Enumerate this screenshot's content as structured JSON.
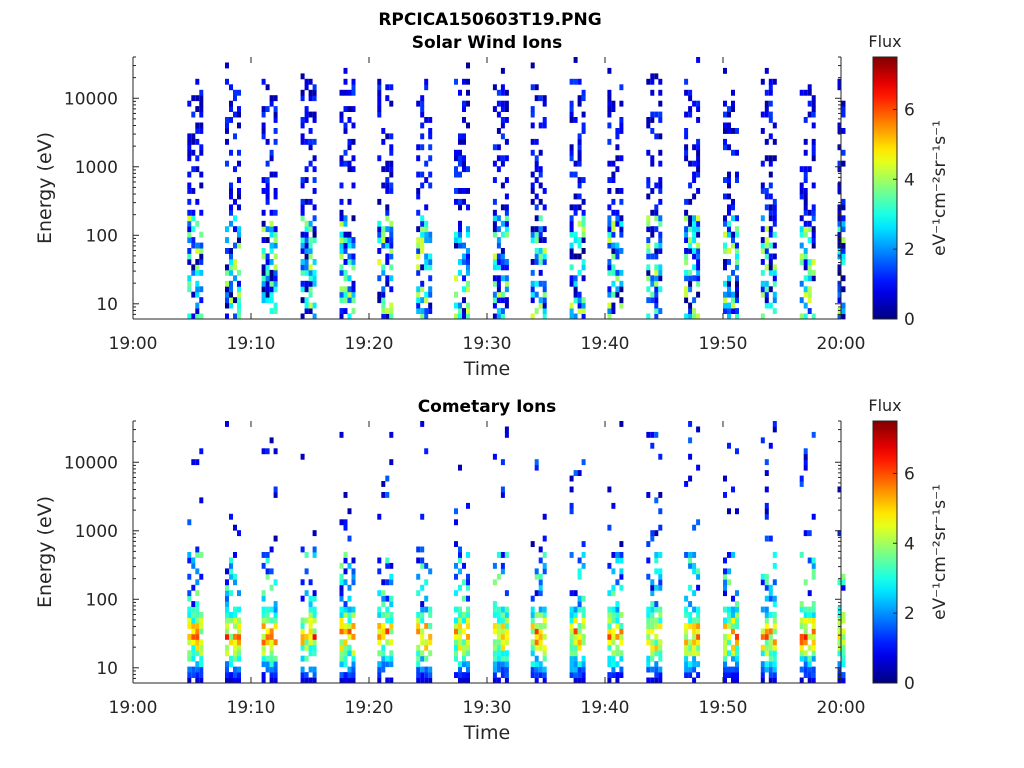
{
  "figure_title": "RPCICA150603T19.PNG",
  "chart_data": [
    {
      "type": "heatmap",
      "title": "Solar Wind Ions",
      "xlabel": "Time",
      "ylabel": "Energy (eV)",
      "x_ticks": [
        "19:00",
        "19:10",
        "19:20",
        "19:30",
        "19:40",
        "19:50",
        "20:00"
      ],
      "y_ticks": [
        "10",
        "100",
        "1000",
        "10000"
      ],
      "y_scale": "log",
      "xlim": [
        "19:00",
        "20:00"
      ],
      "ylim": [
        6,
        40000
      ],
      "colorbar": {
        "title": "Flux",
        "label": "eV⁻¹cm⁻²sr⁻¹s⁻¹",
        "ticks": [
          "0",
          "2",
          "4",
          "6"
        ],
        "range": [
          0,
          7.5
        ],
        "colormap": "jet"
      },
      "scan_start_minutes": [
        4.6,
        7.8,
        10.9,
        14.2,
        17.5,
        20.7,
        24.0,
        27.2,
        30.5,
        33.7,
        37.0,
        40.2,
        43.5,
        46.7,
        50.0,
        53.2,
        56.5,
        59.7
      ],
      "scan_width_minutes": 1.1,
      "low_energy_flux_peak": 4.5,
      "high_energy_flux_peak": 1.2,
      "grid": false
    },
    {
      "type": "heatmap",
      "title": "Cometary Ions",
      "xlabel": "Time",
      "ylabel": "Energy (eV)",
      "x_ticks": [
        "19:00",
        "19:10",
        "19:20",
        "19:30",
        "19:40",
        "19:50",
        "20:00"
      ],
      "y_ticks": [
        "10",
        "100",
        "1000",
        "10000"
      ],
      "y_scale": "log",
      "xlim": [
        "19:00",
        "20:00"
      ],
      "ylim": [
        6,
        40000
      ],
      "colorbar": {
        "title": "Flux",
        "label": "eV⁻¹cm⁻²sr⁻¹s⁻¹",
        "ticks": [
          "0",
          "2",
          "4",
          "6"
        ],
        "range": [
          0,
          7.5
        ],
        "colormap": "jet"
      },
      "scan_start_minutes": [
        4.6,
        7.8,
        10.9,
        14.2,
        17.5,
        20.7,
        24.0,
        27.2,
        30.5,
        33.7,
        37.0,
        40.2,
        43.5,
        46.7,
        50.0,
        53.2,
        56.5,
        59.7
      ],
      "scan_width_minutes": 1.1,
      "peak_energy_ev": 30,
      "peak_flux": 6.8,
      "high_energy_flux_peak": 1.5,
      "grid": false
    }
  ]
}
